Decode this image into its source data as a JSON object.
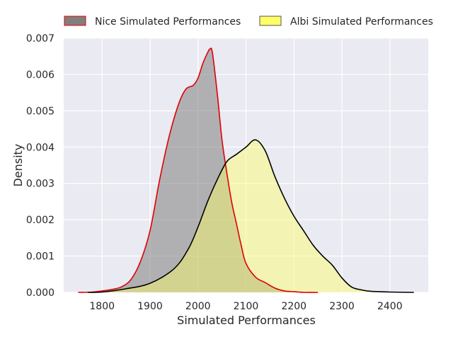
{
  "chart_data": {
    "type": "area",
    "title": "",
    "xlabel": "Simulated Performances",
    "ylabel": "Density",
    "xlim": [
      1720,
      2480
    ],
    "ylim": [
      0,
      0.007
    ],
    "xticks": [
      1800,
      1900,
      2000,
      2100,
      2200,
      2300,
      2400
    ],
    "yticks": [
      0.0,
      0.001,
      0.002,
      0.003,
      0.004,
      0.005,
      0.006,
      0.007
    ],
    "ytick_labels": [
      "0.000",
      "0.001",
      "0.002",
      "0.003",
      "0.004",
      "0.005",
      "0.006",
      "0.007"
    ],
    "grid": true,
    "legend_position": "top",
    "series": [
      {
        "name": "Nice Simulated Performances",
        "fill": "#808080",
        "line": "#e00000",
        "x": [
          1750,
          1780,
          1800,
          1820,
          1840,
          1860,
          1880,
          1900,
          1920,
          1940,
          1960,
          1975,
          1990,
          2000,
          2010,
          2020,
          2025,
          2030,
          2040,
          2050,
          2060,
          2070,
          2080,
          2090,
          2100,
          2120,
          2140,
          2160,
          2180,
          2200,
          2220,
          2250
        ],
        "y": [
          0.0,
          1e-05,
          4e-05,
          8e-05,
          0.00015,
          0.00035,
          0.00085,
          0.0017,
          0.0031,
          0.0043,
          0.0052,
          0.0056,
          0.0057,
          0.0059,
          0.0063,
          0.0066,
          0.0067,
          0.0066,
          0.0055,
          0.0042,
          0.0033,
          0.0025,
          0.0019,
          0.0013,
          0.0008,
          0.00042,
          0.00027,
          0.00012,
          4e-05,
          2e-05,
          0.0,
          0.0
        ]
      },
      {
        "name": "Albi Simulated Performances",
        "fill": "#ffff66",
        "line": "#000000",
        "x": [
          1770,
          1800,
          1850,
          1900,
          1950,
          1980,
          2000,
          2020,
          2040,
          2060,
          2080,
          2100,
          2120,
          2140,
          2160,
          2180,
          2200,
          2220,
          2240,
          2260,
          2280,
          2300,
          2320,
          2340,
          2360,
          2400,
          2450
        ],
        "y": [
          0.0,
          1e-05,
          0.0001,
          0.00025,
          0.00065,
          0.0012,
          0.0018,
          0.0025,
          0.0031,
          0.0036,
          0.0038,
          0.004,
          0.0042,
          0.0039,
          0.0032,
          0.0026,
          0.0021,
          0.0017,
          0.0013,
          0.001,
          0.00075,
          0.0004,
          0.00015,
          7e-05,
          3e-05,
          1e-05,
          0.0
        ]
      }
    ]
  }
}
